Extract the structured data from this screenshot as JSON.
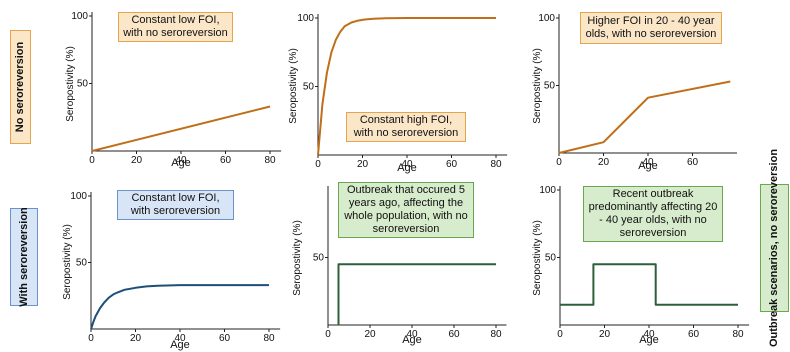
{
  "colors": {
    "orange_box_bg": "#fbe6c8",
    "orange_box_border": "#e6a54a",
    "blue_box_bg": "#d8e5f6",
    "blue_box_border": "#6c93c9",
    "green_box_bg": "#d7eccc",
    "green_box_border": "#6aa84f",
    "orange_line": "#c06e1a",
    "blue_line": "#1f4e79",
    "green_line": "#2e5f3a"
  },
  "row_labels": {
    "top": "No seroreversion",
    "bottom": "With seroreversion",
    "right": "Outbreak scenarios, no seroreversion"
  },
  "chart_data": [
    {
      "type": "line",
      "annotation": [
        "Constant low FOI,",
        "with no seroreversion"
      ],
      "xlabel": "Age",
      "ylabel": "Seropostivity (%)",
      "xlim": [
        0,
        85
      ],
      "ylim": [
        0,
        100
      ],
      "xticks": [
        0,
        20,
        40,
        60,
        80
      ],
      "yticks": [
        50,
        100
      ],
      "series": [
        {
          "x": [
            0,
            80
          ],
          "y": [
            0,
            33
          ]
        }
      ]
    },
    {
      "type": "line",
      "annotation": [
        "Constant high FOI,",
        "with no seroreversion"
      ],
      "xlabel": "Age",
      "ylabel": "Seropostivity (%)",
      "xlim": [
        0,
        85
      ],
      "ylim": [
        0,
        100
      ],
      "xticks": [
        0,
        20,
        40,
        60,
        80
      ],
      "yticks": [
        50,
        100
      ],
      "series": [
        {
          "x": [
            0,
            2,
            4,
            6,
            8,
            10,
            12,
            15,
            18,
            21,
            25,
            30,
            35,
            40,
            50,
            60,
            70,
            80
          ],
          "y": [
            0,
            37,
            60,
            75,
            84,
            90,
            94,
            96.7,
            98.1,
            98.9,
            99.4,
            99.8,
            99.9,
            100,
            100,
            100,
            100,
            100
          ]
        }
      ]
    },
    {
      "type": "line",
      "annotation": [
        "Higher FOI in 20 - 40 year",
        "olds, with no seroreversion"
      ],
      "xlabel": "Age",
      "ylabel": "Seropostivity (%)",
      "xlim": [
        0,
        80
      ],
      "ylim": [
        0,
        100
      ],
      "xticks": [
        0,
        20,
        40,
        60
      ],
      "yticks": [
        50,
        100
      ],
      "series": [
        {
          "x": [
            0,
            20,
            40,
            77
          ],
          "y": [
            0,
            8,
            41,
            53
          ]
        }
      ]
    },
    {
      "type": "line",
      "annotation": [
        "Constant low FOI,",
        "with seroreversion"
      ],
      "xlabel": "Age",
      "ylabel": "Seropostivity (%)",
      "xlim": [
        0,
        85
      ],
      "ylim": [
        0,
        100
      ],
      "xticks": [
        0,
        20,
        40,
        60,
        80
      ],
      "yticks": [
        50,
        100
      ],
      "series": [
        {
          "x": [
            0,
            1,
            2,
            4,
            6,
            8,
            10,
            12,
            15,
            20,
            25,
            30,
            40,
            50,
            60,
            70,
            80
          ],
          "y": [
            0,
            5,
            9.5,
            15.5,
            20,
            23.5,
            26,
            27.5,
            29.5,
            31,
            32,
            32.5,
            33,
            33,
            33,
            33,
            33
          ]
        }
      ]
    },
    {
      "type": "line",
      "annotation": [
        "Outbreak that occured 5",
        "years ago, affecting the",
        "whole population, with no",
        "seroreversion"
      ],
      "xlabel": "Age",
      "ylabel": "Seropostivity (%)",
      "xlim": [
        0,
        85
      ],
      "ylim": [
        0,
        100
      ],
      "xticks": [
        0,
        20,
        40,
        60,
        80
      ],
      "yticks": [
        50
      ],
      "series": [
        {
          "x": [
            5,
            5,
            80
          ],
          "y": [
            0,
            45,
            45
          ]
        }
      ]
    },
    {
      "type": "line",
      "annotation": [
        "Recent outbreak",
        "predominantly affecting 20",
        "- 40 year olds, with no",
        "seroreversion"
      ],
      "xlabel": "Age",
      "ylabel": "Seropostivity (%)",
      "xlim": [
        0,
        85
      ],
      "ylim": [
        0,
        100
      ],
      "xticks": [
        0,
        20,
        40,
        60,
        80
      ],
      "yticks": [
        50,
        100
      ],
      "series": [
        {
          "x": [
            0,
            15,
            15,
            43,
            43,
            80
          ],
          "y": [
            15,
            15,
            45,
            45,
            15,
            15
          ]
        }
      ]
    }
  ]
}
